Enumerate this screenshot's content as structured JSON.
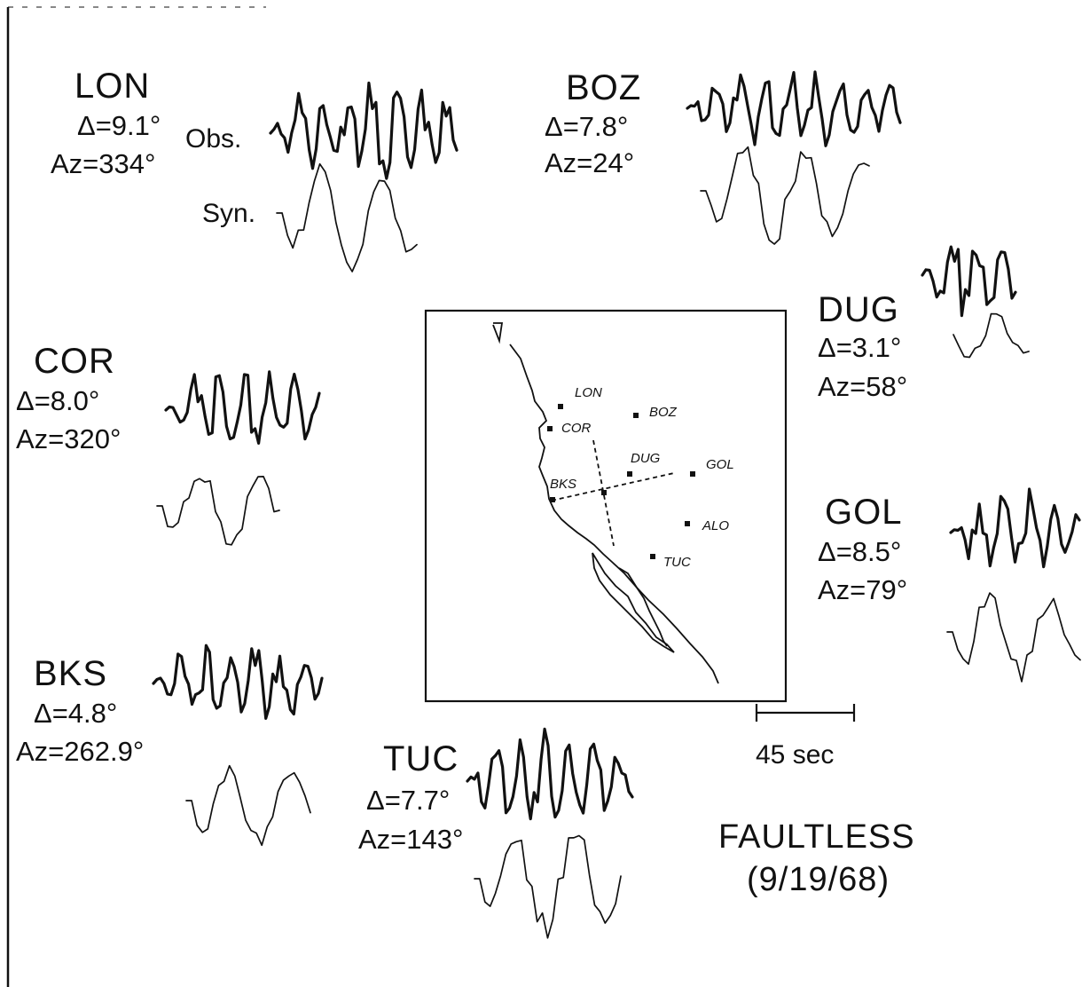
{
  "trace_labels": {
    "observed": "Obs.",
    "synthetic": "Syn."
  },
  "stations": [
    {
      "code": "LON",
      "delta": "Δ=9.1°",
      "az": "Az=334°"
    },
    {
      "code": "BOZ",
      "delta": "Δ=7.8°",
      "az": "Az=24°"
    },
    {
      "code": "DUG",
      "delta": "Δ=3.1°",
      "az": "Az=58°"
    },
    {
      "code": "COR",
      "delta": "Δ=8.0°",
      "az": "Az=320°"
    },
    {
      "code": "GOL",
      "delta": "Δ=8.5°",
      "az": "Az=79°"
    },
    {
      "code": "BKS",
      "delta": "Δ=4.8°",
      "az": "Az=262.9°"
    },
    {
      "code": "TUC",
      "delta": "Δ=7.7°",
      "az": "Az=143°"
    }
  ],
  "map": {
    "stations": [
      "LON",
      "BOZ",
      "COR",
      "DUG",
      "GOL",
      "BKS",
      "ALO",
      "TUC"
    ]
  },
  "scale_bar": {
    "label": "45 sec"
  },
  "event": {
    "name": "FAULTLESS",
    "date": "(9/19/68)"
  }
}
